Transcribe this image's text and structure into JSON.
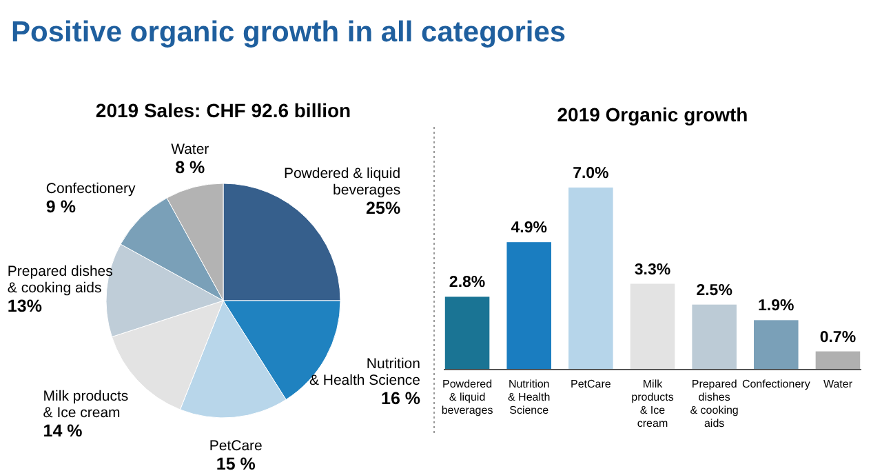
{
  "chart_data": [
    {
      "type": "pie",
      "title": "Positive organic growth in all categories",
      "subtitle": "2019 Sales: CHF 92.6 billion",
      "categories": [
        "Powdered & liquid beverages",
        "Nutrition & Health Science",
        "PetCare",
        "Milk products & Ice cream",
        "Prepared dishes & cooking aids",
        "Confectionery",
        "Water"
      ],
      "values": [
        25,
        16,
        15,
        14,
        13,
        9,
        8
      ],
      "value_labels": [
        "25%",
        "16 %",
        "15 %",
        "14 %",
        "13%",
        "9 %",
        "8 %"
      ],
      "colors": [
        "#365f8c",
        "#1f82c0",
        "#b8d6ea",
        "#e3e3e3",
        "#bfcdd8",
        "#7aa0b8",
        "#b3b3b3"
      ]
    },
    {
      "type": "bar",
      "title": "2019 Organic growth",
      "categories": [
        "Powdered & liquid beverages",
        "Nutrition & Health Science",
        "PetCare",
        "Milk products & Ice cream",
        "Prepared dishes & cooking aids",
        "Confectionery",
        "Water"
      ],
      "values": [
        2.8,
        4.9,
        7.0,
        3.3,
        2.5,
        1.9,
        0.7
      ],
      "value_labels": [
        "2.8%",
        "4.9%",
        "7.0%",
        "3.3%",
        "2.5%",
        "1.9%",
        "0.7%"
      ],
      "colors": [
        "#1a7494",
        "#1a7dc0",
        "#b6d5ea",
        "#e3e3e3",
        "#bccbd6",
        "#7aa0b8",
        "#b0b0b0"
      ]
    }
  ]
}
